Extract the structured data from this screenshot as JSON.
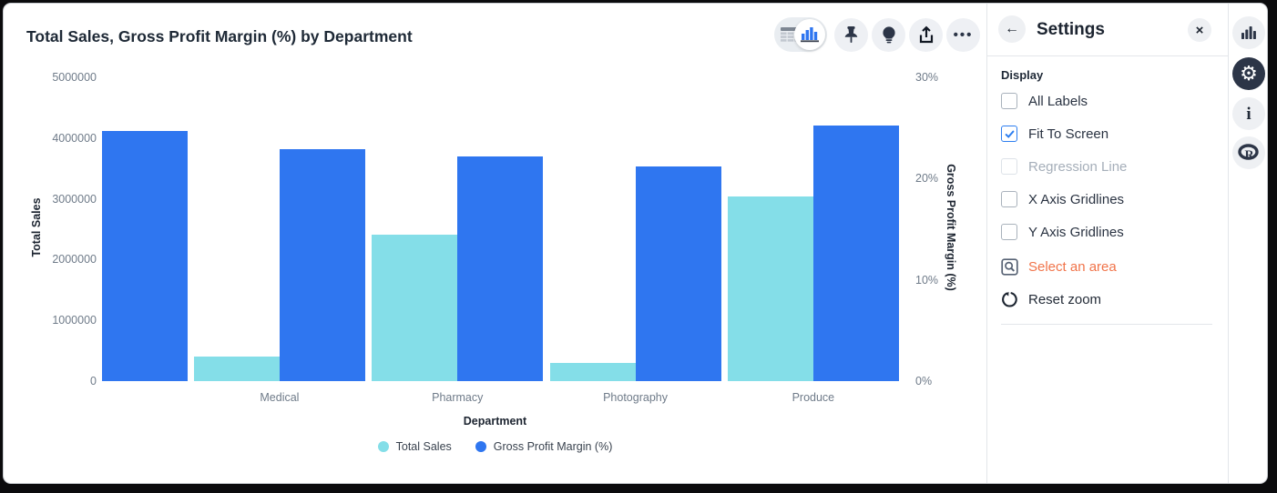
{
  "header": {
    "title": "Total Sales, Gross Profit Margin (%) by Department",
    "toolbar": {
      "view_toggle": {
        "options": [
          "table-view",
          "chart-view"
        ],
        "selected": "chart-view"
      },
      "buttons": [
        "pin",
        "insights",
        "export",
        "more"
      ]
    }
  },
  "icons": {
    "back": "←",
    "close": "×",
    "ellipsis": "•••",
    "gear": "⚙",
    "info": "i"
  },
  "chart_data": {
    "type": "bar",
    "title": "Total Sales, Gross Profit Margin (%) by Department",
    "xlabel": "Department",
    "categories": [
      "",
      "Medical",
      "Pharmacy",
      "Photography",
      "Produce"
    ],
    "series": [
      {
        "name": "Total Sales",
        "axis": "left",
        "color": "#84dee8",
        "values": [
          null,
          400000,
          2410000,
          300000,
          3040000
        ]
      },
      {
        "name": "Gross Profit Margin (%)",
        "axis": "right",
        "color": "#2f76f0",
        "values": [
          24.7,
          22.9,
          22.2,
          21.2,
          25.2
        ]
      }
    ],
    "left_axis": {
      "label": "Total Sales",
      "min": 0,
      "max": 5000000,
      "ticks": [
        0,
        1000000,
        2000000,
        3000000,
        4000000,
        5000000
      ]
    },
    "right_axis": {
      "label": "Gross Profit Margin (%)",
      "min": 0,
      "max": 30,
      "ticks": [
        "0%",
        "10%",
        "20%",
        "30%"
      ]
    },
    "grid": false,
    "legend_position": "bottom",
    "note": "chart is zoomed: first group shows only its Gross Profit Margin bar, clipped at left, no category label"
  },
  "settings_panel": {
    "title": "Settings",
    "section": "Display",
    "checkboxes": [
      {
        "label": "All Labels",
        "checked": false,
        "disabled": false
      },
      {
        "label": "Fit To Screen",
        "checked": true,
        "disabled": false
      },
      {
        "label": "Regression Line",
        "checked": false,
        "disabled": true
      },
      {
        "label": "X Axis Gridlines",
        "checked": false,
        "disabled": false
      },
      {
        "label": "Y Axis Gridlines",
        "checked": false,
        "disabled": false
      }
    ],
    "actions": [
      {
        "label": "Select an area",
        "icon": "select-area-icon",
        "color": "#f1744a"
      },
      {
        "label": "Reset zoom",
        "icon": "reset-zoom-icon",
        "color": "#242c38"
      }
    ]
  },
  "right_sidebar": {
    "items": [
      {
        "name": "chart-tool",
        "active": false
      },
      {
        "name": "settings-tool",
        "active": true
      },
      {
        "name": "info-tool",
        "active": false
      },
      {
        "name": "r-tool",
        "active": false
      }
    ]
  },
  "colors": {
    "accent_blue": "#2f76f0",
    "accent_cyan": "#84dee8",
    "orange": "#f1744a",
    "icon_dark": "#2c3547",
    "checkbox_checked": "#2d7ef0"
  }
}
